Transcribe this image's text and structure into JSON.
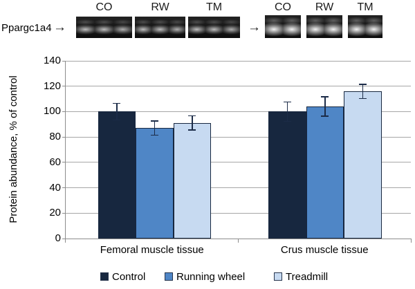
{
  "blot": {
    "protein_label": "Ppargc1a4",
    "arrow_glyph": "→",
    "groups": [
      {
        "name": "femoral-blot",
        "lane_labels": [
          "CO",
          "RW",
          "TM"
        ],
        "lanes_per_panel": 3
      },
      {
        "name": "crus-blot",
        "lane_labels": [
          "CO",
          "RW",
          "TM"
        ],
        "lanes_per_panel": 2
      }
    ]
  },
  "chart_data": {
    "type": "bar",
    "title": "",
    "xlabel": "",
    "ylabel": "Protein abundance, % of control",
    "categories": [
      "Femoral muscle tissue",
      "Crus muscle tissue"
    ],
    "series": [
      {
        "name": "Control",
        "color": "#17273f",
        "values": [
          100,
          100
        ],
        "errors": [
          7,
          8
        ]
      },
      {
        "name": "Running wheel",
        "color": "#4f86c6",
        "values": [
          87,
          104
        ],
        "errors": [
          6,
          8
        ]
      },
      {
        "name": "Treadmill",
        "color": "#c7daf1",
        "values": [
          91,
          116
        ],
        "errors": [
          6,
          6
        ]
      }
    ],
    "ylim": [
      0,
      140
    ],
    "yticks": [
      0,
      20,
      40,
      60,
      80,
      100,
      120,
      140
    ],
    "grid": true,
    "legend_position": "bottom"
  }
}
